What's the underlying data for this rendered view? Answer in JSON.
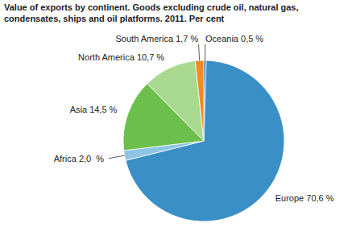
{
  "chart_data": {
    "type": "pie",
    "title": "Value of exports by continent. Goods excluding crude oil, natural gas,\ncondensates, ships and oil platforms. 2011. Per cent",
    "categories": [
      "Oceania",
      "Europe",
      "Africa",
      "Asia",
      "North America",
      "South America"
    ],
    "values": [
      0.5,
      70.6,
      2.0,
      14.5,
      10.7,
      1.7
    ],
    "value_labels": [
      "0,5 %",
      "70,6 %",
      "2,0  %",
      "14,5 %",
      "10,7 %",
      "1,7 %"
    ],
    "colors": [
      "#2a6fae",
      "#3a8fc7",
      "#8dc3e3",
      "#6bbf4a",
      "#a8d98f",
      "#f08a24"
    ],
    "data_labels": true
  }
}
